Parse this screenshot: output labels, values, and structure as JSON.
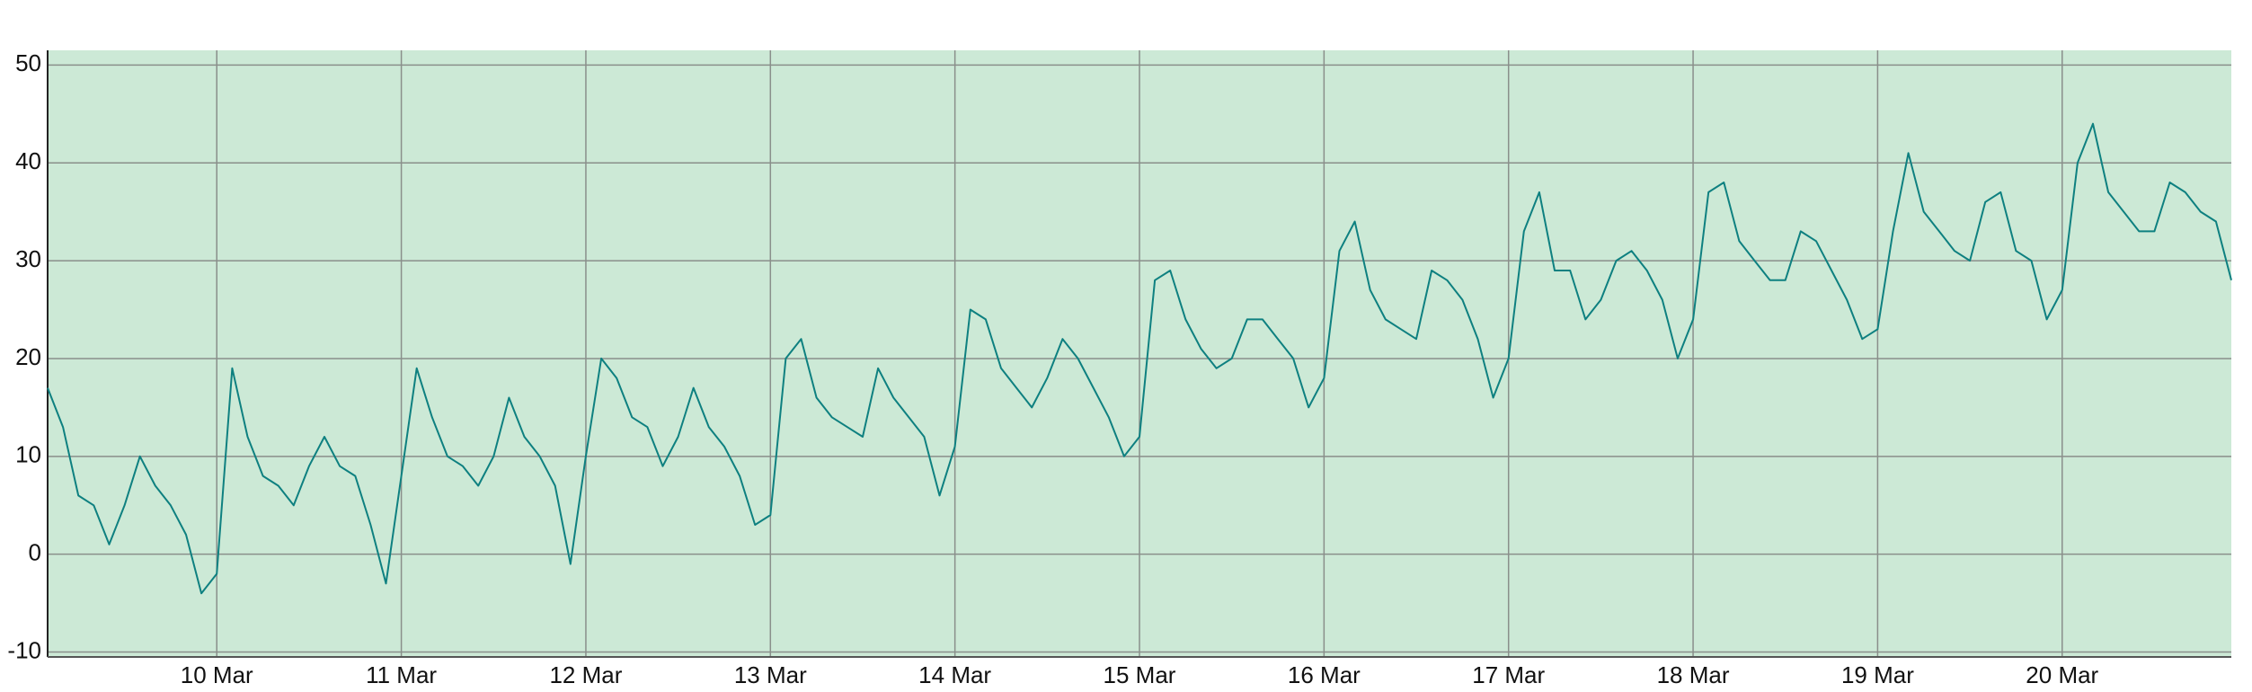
{
  "chart_data": {
    "type": "line",
    "categories": [
      null,
      null,
      null,
      null,
      null,
      null,
      null,
      null,
      null,
      null,
      null,
      "10 Mar",
      null,
      null,
      null,
      null,
      null,
      null,
      null,
      null,
      null,
      null,
      null,
      "11 Mar",
      null,
      null,
      null,
      null,
      null,
      null,
      null,
      null,
      null,
      null,
      null,
      "12 Mar",
      null,
      null,
      null,
      null,
      null,
      null,
      null,
      null,
      null,
      null,
      null,
      "13 Mar",
      null,
      null,
      null,
      null,
      null,
      null,
      null,
      null,
      null,
      null,
      null,
      "14 Mar",
      null,
      null,
      null,
      null,
      null,
      null,
      null,
      null,
      null,
      null,
      null,
      "15 Mar",
      null,
      null,
      null,
      null,
      null,
      null,
      null,
      null,
      null,
      null,
      null,
      "16 Mar",
      null,
      null,
      null,
      null,
      null,
      null,
      null,
      null,
      null,
      null,
      null,
      "17 Mar",
      null,
      null,
      null,
      null,
      null,
      null,
      null,
      null,
      null,
      null,
      null,
      "18 Mar",
      null,
      null,
      null,
      null,
      null,
      null,
      null,
      null,
      null,
      null,
      null,
      "19 Mar",
      null,
      null,
      null,
      null,
      null,
      null,
      null,
      null,
      null,
      null,
      null,
      "20 Mar",
      null,
      null,
      null,
      null,
      null,
      null,
      null,
      null,
      null,
      null,
      null
    ],
    "values": [
      17,
      13,
      6,
      5,
      1,
      5,
      10,
      7,
      5,
      2,
      -4,
      -2,
      19,
      12,
      8,
      7,
      5,
      9,
      12,
      9,
      8,
      3,
      -3,
      8,
      19,
      14,
      10,
      9,
      7,
      10,
      16,
      12,
      10,
      7,
      -1,
      10,
      20,
      18,
      14,
      13,
      9,
      12,
      17,
      13,
      11,
      8,
      3,
      4,
      20,
      22,
      16,
      14,
      13,
      12,
      19,
      16,
      14,
      12,
      6,
      11,
      25,
      24,
      19,
      17,
      15,
      18,
      22,
      20,
      17,
      14,
      10,
      12,
      28,
      29,
      24,
      21,
      19,
      20,
      24,
      24,
      22,
      20,
      15,
      18,
      31,
      34,
      27,
      24,
      23,
      22,
      29,
      28,
      26,
      22,
      16,
      20,
      33,
      37,
      29,
      29,
      24,
      26,
      30,
      31,
      29,
      26,
      20,
      24,
      37,
      38,
      32,
      30,
      28,
      28,
      33,
      32,
      29,
      26,
      22,
      23,
      33,
      41,
      35,
      33,
      31,
      30,
      36,
      37,
      31,
      30,
      24,
      27,
      40,
      44,
      37,
      35,
      33,
      33,
      38,
      37,
      35,
      34,
      28
    ],
    "color": "#0e8080",
    "ylim": [
      -10.5,
      51.5
    ],
    "yticks": [
      -10,
      0,
      10,
      20,
      30,
      40,
      50
    ],
    "grid": true
  }
}
